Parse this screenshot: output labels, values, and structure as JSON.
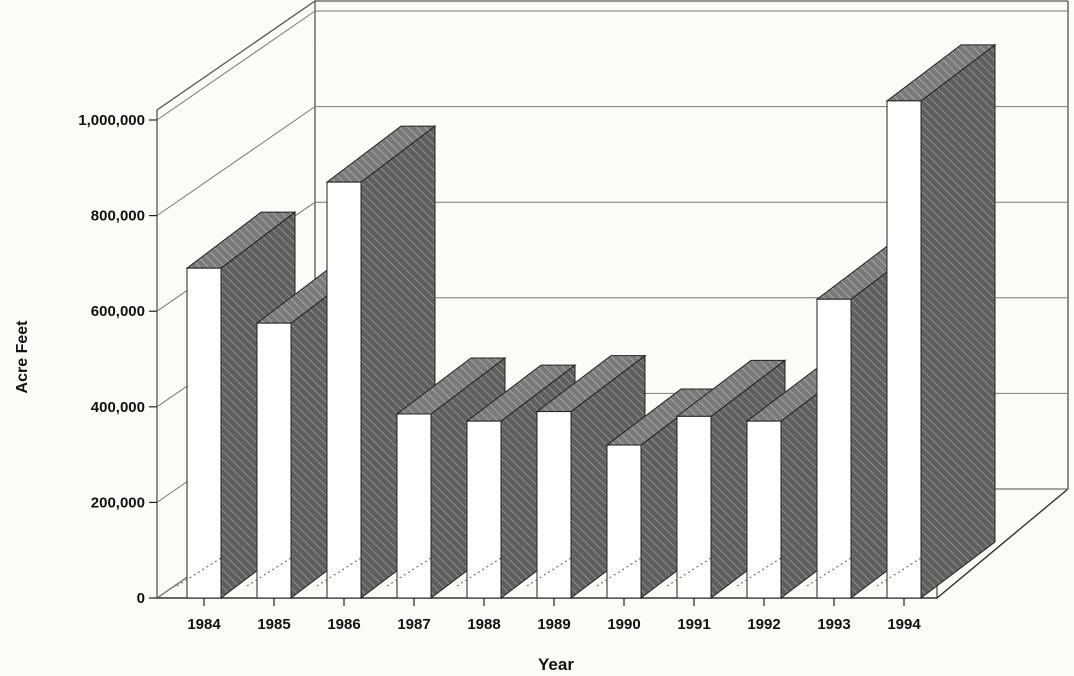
{
  "chart_data": {
    "type": "bar",
    "categories": [
      "1984",
      "1985",
      "1986",
      "1987",
      "1988",
      "1989",
      "1990",
      "1991",
      "1992",
      "1993",
      "1994"
    ],
    "values": [
      690000,
      575000,
      870000,
      385000,
      370000,
      390000,
      320000,
      380000,
      370000,
      625000,
      1040000
    ],
    "xlabel": "Year",
    "ylabel": "Acre Feet",
    "ylim": [
      0,
      1000000
    ],
    "yticks": [
      0,
      200000,
      400000,
      600000,
      800000,
      1000000
    ],
    "ytick_labels": [
      "0",
      "200,000",
      "400,000",
      "600,000",
      "800,000",
      "1,000,000"
    ],
    "grid": true,
    "style": "3d-bar",
    "colors": {
      "front": "#ffffff",
      "side": "#6b6b6b",
      "top": "#8a8a8a",
      "line": "#222222",
      "grid": "#777777"
    }
  }
}
